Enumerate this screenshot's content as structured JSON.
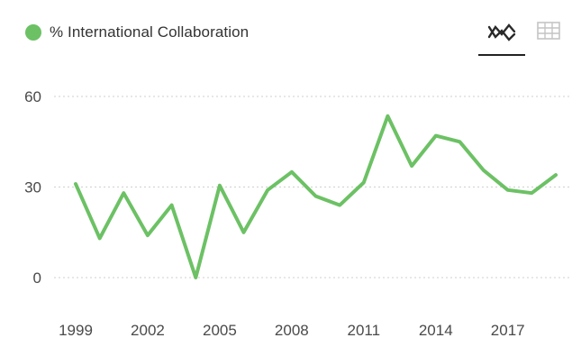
{
  "legend": {
    "label": "% International Collaboration",
    "color": "#6cc164"
  },
  "view_toggle": {
    "active": "line-chart-icon",
    "items": [
      "line-chart-icon",
      "table-icon"
    ]
  },
  "chart_data": {
    "type": "line",
    "x": [
      1999,
      2000,
      2001,
      2002,
      2003,
      2004,
      2005,
      2006,
      2007,
      2008,
      2009,
      2010,
      2011,
      2012,
      2013,
      2014,
      2015,
      2016,
      2017,
      2018,
      2019
    ],
    "series": [
      {
        "name": "% International Collaboration",
        "color": "#6cc164",
        "values": [
          31,
          13,
          28,
          14,
          24,
          0,
          30.5,
          15,
          29,
          35,
          27,
          24,
          31.5,
          53.5,
          37,
          47,
          45,
          35.5,
          29,
          28,
          34
        ]
      }
    ],
    "xticks": [
      1999,
      2002,
      2005,
      2008,
      2011,
      2014,
      2017
    ],
    "yticks": [
      0,
      30,
      60
    ],
    "ylim": [
      0,
      60
    ],
    "xlim": [
      1999,
      2019
    ],
    "grid": "horizontal-dotted",
    "title": "",
    "xlabel": "",
    "ylabel": ""
  }
}
